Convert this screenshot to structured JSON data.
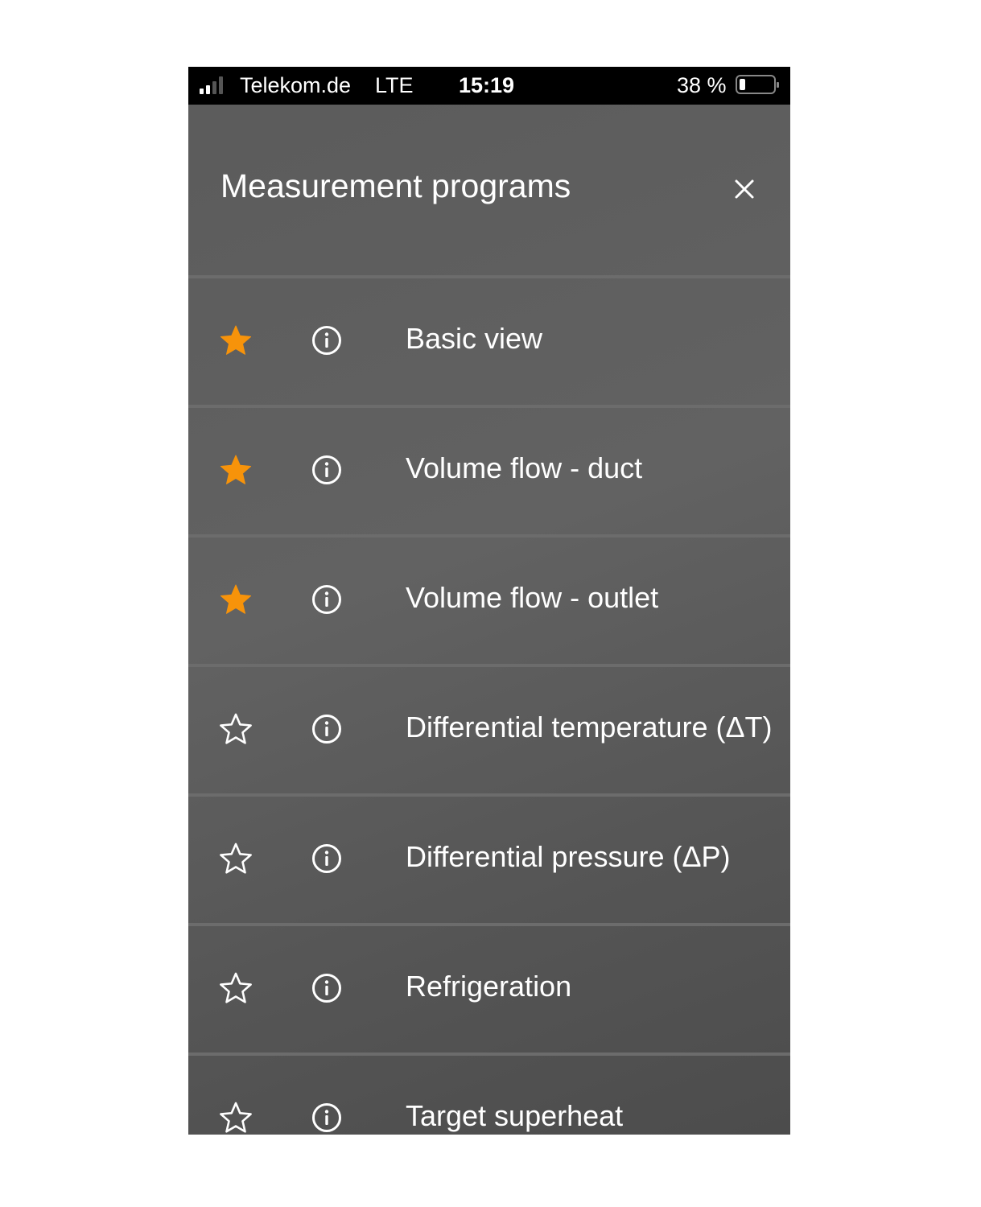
{
  "status_bar": {
    "carrier": "Telekom.de",
    "network": "LTE",
    "time": "15:19",
    "battery": "38 %",
    "battery_level": 0.38,
    "signal_bars": 2
  },
  "header": {
    "title": "Measurement programs",
    "close_icon": "close-icon"
  },
  "colors": {
    "favorite": "#f7930a",
    "text": "#ffffff"
  },
  "programs": [
    {
      "label": "Basic view",
      "favorite": true
    },
    {
      "label": "Volume flow - duct",
      "favorite": true
    },
    {
      "label": "Volume flow - outlet",
      "favorite": true
    },
    {
      "label": "Differential temperature (ΔT)",
      "favorite": false
    },
    {
      "label": "Differential pressure (ΔP)",
      "favorite": false
    },
    {
      "label": "Refrigeration",
      "favorite": false
    },
    {
      "label": "Target superheat",
      "favorite": false
    }
  ]
}
